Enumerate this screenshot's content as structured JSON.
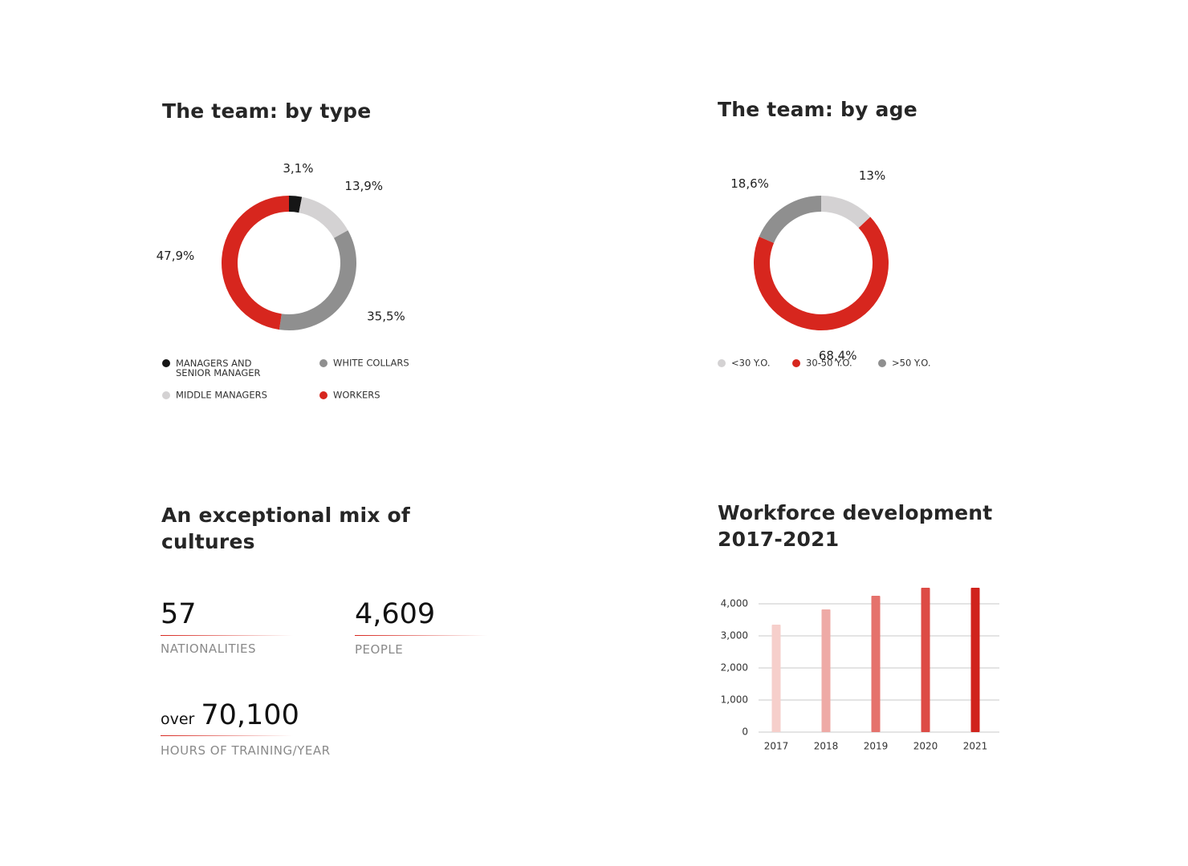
{
  "chart_data": [
    {
      "type": "pie",
      "title": "The team: by type",
      "categories": [
        "MANAGERS AND SENIOR MANAGER",
        "MIDDLE MANAGERS",
        "WHITE COLLARS",
        "WORKERS"
      ],
      "values": [
        3.1,
        13.9,
        35.5,
        47.9
      ],
      "value_labels": [
        "3,1%",
        "13,9%",
        "35,5%",
        "47,9%"
      ],
      "colors": [
        "#161616",
        "#d4d2d3",
        "#8f8f8f",
        "#d7261e"
      ]
    },
    {
      "type": "pie",
      "title": "The team: by age",
      "categories": [
        "<30 Y.O.",
        "30-50 Y.O.",
        ">50 Y.O."
      ],
      "values": [
        13,
        68.4,
        18.6
      ],
      "value_labels": [
        "13%",
        "68,4%",
        "18,6%"
      ],
      "colors": [
        "#d4d2d3",
        "#d7261e",
        "#8f8f8f"
      ]
    },
    {
      "type": "bar",
      "title": "Workforce development 2017-2021",
      "categories": [
        "2017",
        "2018",
        "2019",
        "2020",
        "2021"
      ],
      "values": [
        3350,
        3825,
        4250,
        4500,
        4500
      ],
      "colors": [
        "#f6cfcb",
        "#eeaaa6",
        "#e5726c",
        "#dd4b45",
        "#d0231c"
      ],
      "ylim": [
        0,
        4500
      ],
      "yticks": [
        0,
        {
          "value": 1000,
          "label": "1,000"
        },
        {
          "value": 2000,
          "label": "2,000"
        },
        {
          "value": 3000,
          "label": "3,000"
        },
        {
          "value": 4000,
          "label": "4,000"
        }
      ],
      "grid": true
    }
  ],
  "stats": {
    "title": "An exceptional mix of cultures",
    "items": [
      {
        "number": "57",
        "label": "NATIONALITIES"
      },
      {
        "number": "4,609",
        "label": "PEOPLE"
      },
      {
        "prefix": "over",
        "number": "70,100",
        "label": "HOURS OF TRAINING/YEAR"
      }
    ]
  }
}
